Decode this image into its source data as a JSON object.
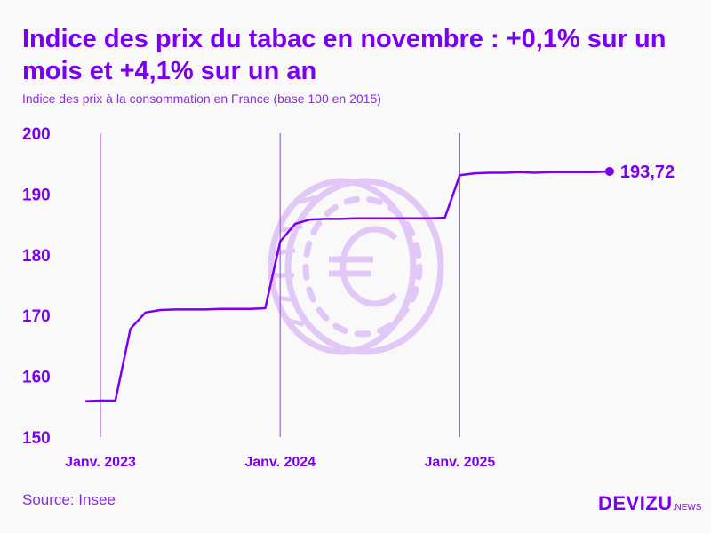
{
  "title": "Indice des prix du tabac en novembre : +0,1% sur un mois et +4,1% sur un an",
  "subtitle": "Indice des prix à la consommation en France (base 100 en 2015)",
  "source": "Source: Insee",
  "logo": {
    "main": "DEVIZU",
    "suffix": ".NEWS"
  },
  "colors": {
    "line": "#7b00f0",
    "gridline": "#a855f7",
    "watermark": "#e2c8f7"
  },
  "watermark_icon": "euro-coin-icon",
  "chart_data": {
    "type": "line",
    "title": "Indice des prix du tabac en novembre : +0,1% sur un mois et +4,1% sur un an",
    "ylim": [
      150,
      200
    ],
    "yticks": [
      "150",
      "160",
      "170",
      "180",
      "190",
      "200"
    ],
    "xticks": [
      {
        "date": "2023-01",
        "label": "Janv. 2023"
      },
      {
        "date": "2024-01",
        "label": "Janv. 2024"
      },
      {
        "date": "2025-01",
        "label": "Janv. 2025"
      }
    ],
    "end_label": "193,72",
    "grid": "vertical at January ticks",
    "x": [
      "2022-12",
      "2023-01",
      "2023-02",
      "2023-03",
      "2023-04",
      "2023-05",
      "2023-06",
      "2023-07",
      "2023-08",
      "2023-09",
      "2023-10",
      "2023-11",
      "2023-12",
      "2024-01",
      "2024-02",
      "2024-03",
      "2024-04",
      "2024-05",
      "2024-06",
      "2024-07",
      "2024-08",
      "2024-09",
      "2024-10",
      "2024-11",
      "2024-12",
      "2025-01",
      "2025-02",
      "2025-03",
      "2025-04",
      "2025-05",
      "2025-06",
      "2025-07",
      "2025-08",
      "2025-09",
      "2025-10",
      "2025-11"
    ],
    "values": [
      155.9,
      156.0,
      156.0,
      167.8,
      170.5,
      170.9,
      171.0,
      171.0,
      171.0,
      171.1,
      171.1,
      171.1,
      171.2,
      182.2,
      185.1,
      185.8,
      185.9,
      185.9,
      186.0,
      186.0,
      186.0,
      186.0,
      186.0,
      186.0,
      186.1,
      193.1,
      193.4,
      193.5,
      193.5,
      193.6,
      193.5,
      193.6,
      193.6,
      193.6,
      193.6,
      193.72
    ]
  }
}
